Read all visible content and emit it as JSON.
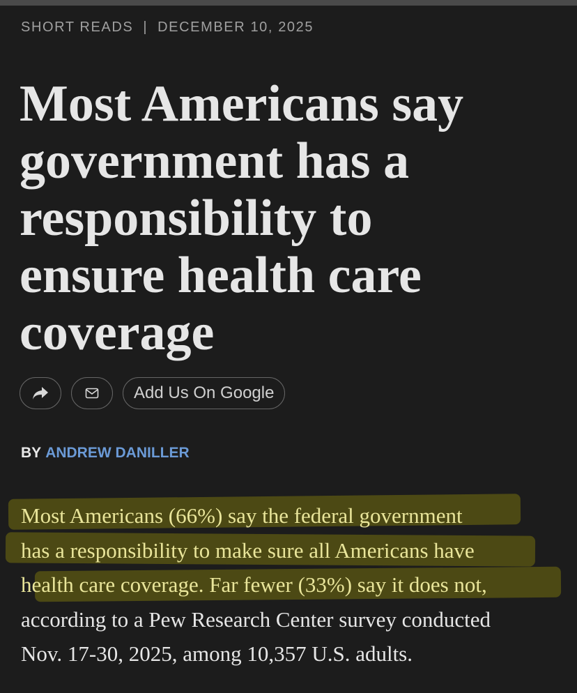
{
  "header": {
    "section": "SHORT READS",
    "separator": "|",
    "date": "DECEMBER 10, 2025"
  },
  "title": "Most Americans say government has a responsibility to ensure health care coverage",
  "actions": {
    "google": "Add Us On Google"
  },
  "byline": {
    "prefix": "BY",
    "author": "ANDREW DANILLER"
  },
  "paragraph": {
    "lines": [
      "Most Americans (66%) say the federal government",
      "has a responsibility to make sure all Americans have",
      "health care coverage. Far fewer (33%) say it does not,",
      "according to a Pew Research Center survey conducted",
      "Nov. 17-30, 2025, among 10,357 U.S. adults."
    ]
  }
}
